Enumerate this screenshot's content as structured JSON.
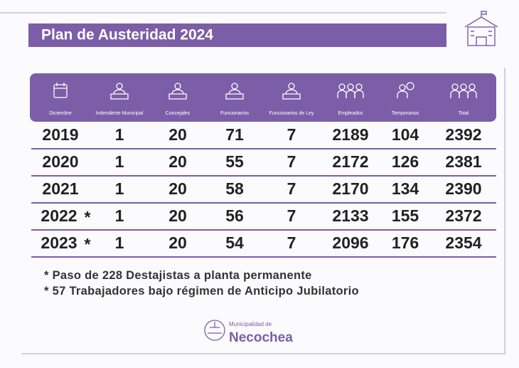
{
  "header": {
    "title": "Plan de Austeridad 2024"
  },
  "table": {
    "columns": [
      "Diciembre",
      "Indendente Municipal",
      "Concejales",
      "Funcionarios",
      "Funcionarios de Ley",
      "Empleados",
      "Temporarios",
      "Total"
    ],
    "rows": [
      {
        "cells": [
          "2019",
          1,
          20,
          71,
          7,
          2189,
          104,
          2392
        ]
      },
      {
        "cells": [
          "2020",
          1,
          20,
          55,
          7,
          2172,
          126,
          2381
        ]
      },
      {
        "cells": [
          "2021",
          1,
          20,
          58,
          7,
          2170,
          134,
          2390
        ]
      },
      {
        "cells": [
          "2022",
          1,
          20,
          56,
          7,
          2133,
          155,
          2372
        ],
        "mark": "*"
      },
      {
        "cells": [
          "2023",
          1,
          20,
          54,
          7,
          2096,
          176,
          2354
        ],
        "mark": "*"
      }
    ]
  },
  "notes": [
    "* Paso de 228 Destajistas a planta permanente",
    "* 57 Trabajadores bajo régimen de Anticipo Jubilatorio"
  ],
  "logo": {
    "small": "Municipalidad de",
    "name": "Necochea"
  }
}
